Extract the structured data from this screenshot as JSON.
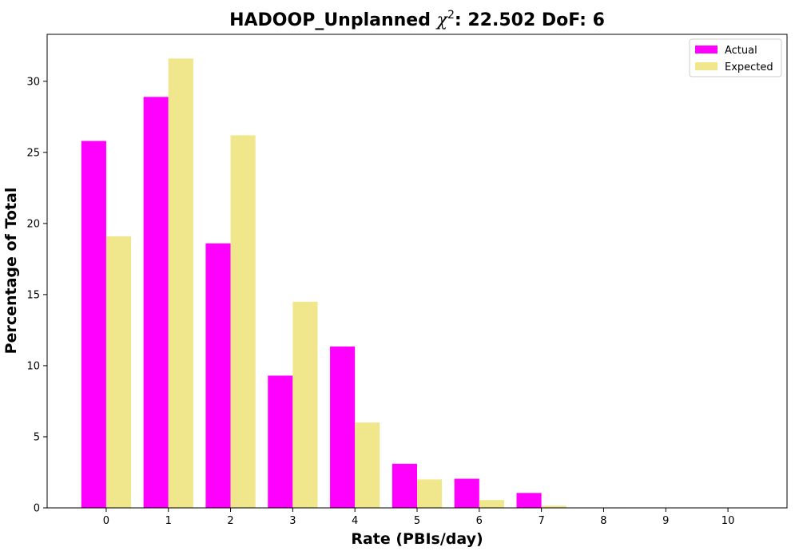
{
  "chart_data": {
    "type": "bar",
    "title_prefix": "HADOOP_Unplanned ",
    "title_symbol": "χ",
    "title_superscript": "2",
    "title_suffix": ": 22.502 DoF: 6",
    "xlabel": "Rate (PBIs/day)",
    "ylabel": "Percentage of Total",
    "categories": [
      "0",
      "1",
      "2",
      "3",
      "4",
      "5",
      "6",
      "7",
      "8",
      "9",
      "10"
    ],
    "series": [
      {
        "name": "Actual",
        "color": "#ff00ff",
        "values": [
          25.8,
          28.9,
          18.6,
          9.3,
          11.35,
          3.1,
          2.05,
          1.05,
          0,
          0,
          0
        ]
      },
      {
        "name": "Expected",
        "color": "#f0e68c",
        "values": [
          19.1,
          31.6,
          26.2,
          14.5,
          6.0,
          2.0,
          0.55,
          0.15,
          0.03,
          0.01,
          0.0
        ]
      }
    ],
    "ylim": [
      0,
      33.3
    ],
    "xlim": [
      -0.95,
      10.95
    ],
    "yticks": [
      0,
      5,
      10,
      15,
      20,
      25,
      30
    ],
    "grid": false,
    "legend_position": "top-right"
  }
}
